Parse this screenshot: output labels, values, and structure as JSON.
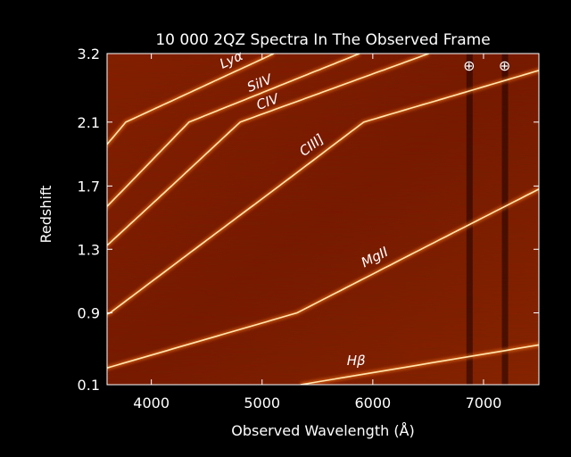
{
  "chart_data": {
    "type": "heatmap",
    "title": "10 000 2QZ Spectra In The Observed Frame",
    "xlabel": "Observed Wavelength (Å)",
    "ylabel": "Redshift",
    "xlim": [
      3600,
      7500
    ],
    "ylim": [
      0.1,
      3.2
    ],
    "x_ticks": [
      4000,
      5000,
      6000,
      7000
    ],
    "x_tick_labels": [
      "4000",
      "5000",
      "6000",
      "7000"
    ],
    "y_ticks": [
      0.1,
      0.9,
      1.3,
      1.7,
      2.1,
      3.2
    ],
    "y_tick_labels": [
      "0.1",
      "0.9",
      "1.3",
      "1.7",
      "2.1",
      "3.2"
    ],
    "colormap": [
      "#3a0500",
      "#7a1600",
      "#b03a05",
      "#ff9a30",
      "#fff4c8"
    ],
    "emission_lines": [
      {
        "label": "Lyα",
        "rest_wavelength": 1216
      },
      {
        "label": "SiIV",
        "rest_wavelength": 1400
      },
      {
        "label": "CIV",
        "rest_wavelength": 1549
      },
      {
        "label": "CIII]",
        "rest_wavelength": 1909
      },
      {
        "label": "MgII",
        "rest_wavelength": 2798
      },
      {
        "label": "Hβ",
        "rest_wavelength": 4861
      }
    ],
    "telluric_markers": [
      {
        "label": "⊕",
        "wavelength": 6870
      },
      {
        "label": "⊕",
        "wavelength": 7190
      }
    ]
  }
}
